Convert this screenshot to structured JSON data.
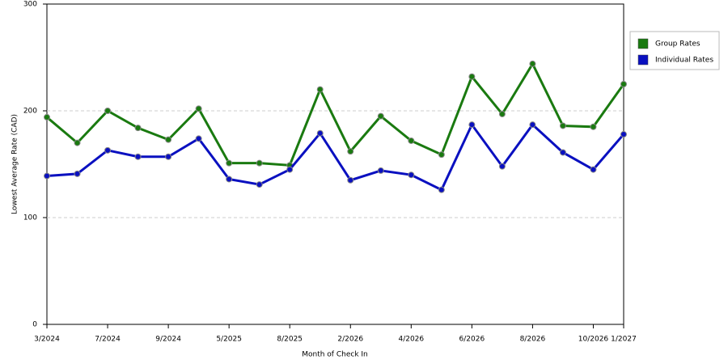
{
  "chart_data": {
    "type": "line",
    "x_label": "Month of Check In",
    "y_label": "Lowest Average Rate (CAD)",
    "categories": [
      "3/2024",
      null,
      "7/2024",
      null,
      "9/2024",
      null,
      "5/2025",
      null,
      "8/2025",
      null,
      "2/2026",
      null,
      "4/2026",
      null,
      "6/2026",
      null,
      "8/2026",
      null,
      "10/2026",
      "1/2027"
    ],
    "series": [
      {
        "name": "Group Rates",
        "color": "#1a7a10",
        "values": [
          194,
          170,
          200,
          184,
          173,
          202,
          151,
          151,
          149,
          220,
          162,
          195,
          172,
          159,
          232,
          197,
          244,
          186,
          185,
          225
        ]
      },
      {
        "name": "Individual Rates",
        "color": "#0a10c0",
        "values": [
          139,
          141,
          163,
          157,
          157,
          174,
          136,
          131,
          145,
          179,
          135,
          144,
          140,
          126,
          187,
          148,
          187,
          161,
          145,
          178
        ]
      }
    ],
    "ylim": [
      0,
      300
    ],
    "yticks": [
      0,
      100,
      200,
      300
    ],
    "grid": true,
    "legend": "right"
  }
}
